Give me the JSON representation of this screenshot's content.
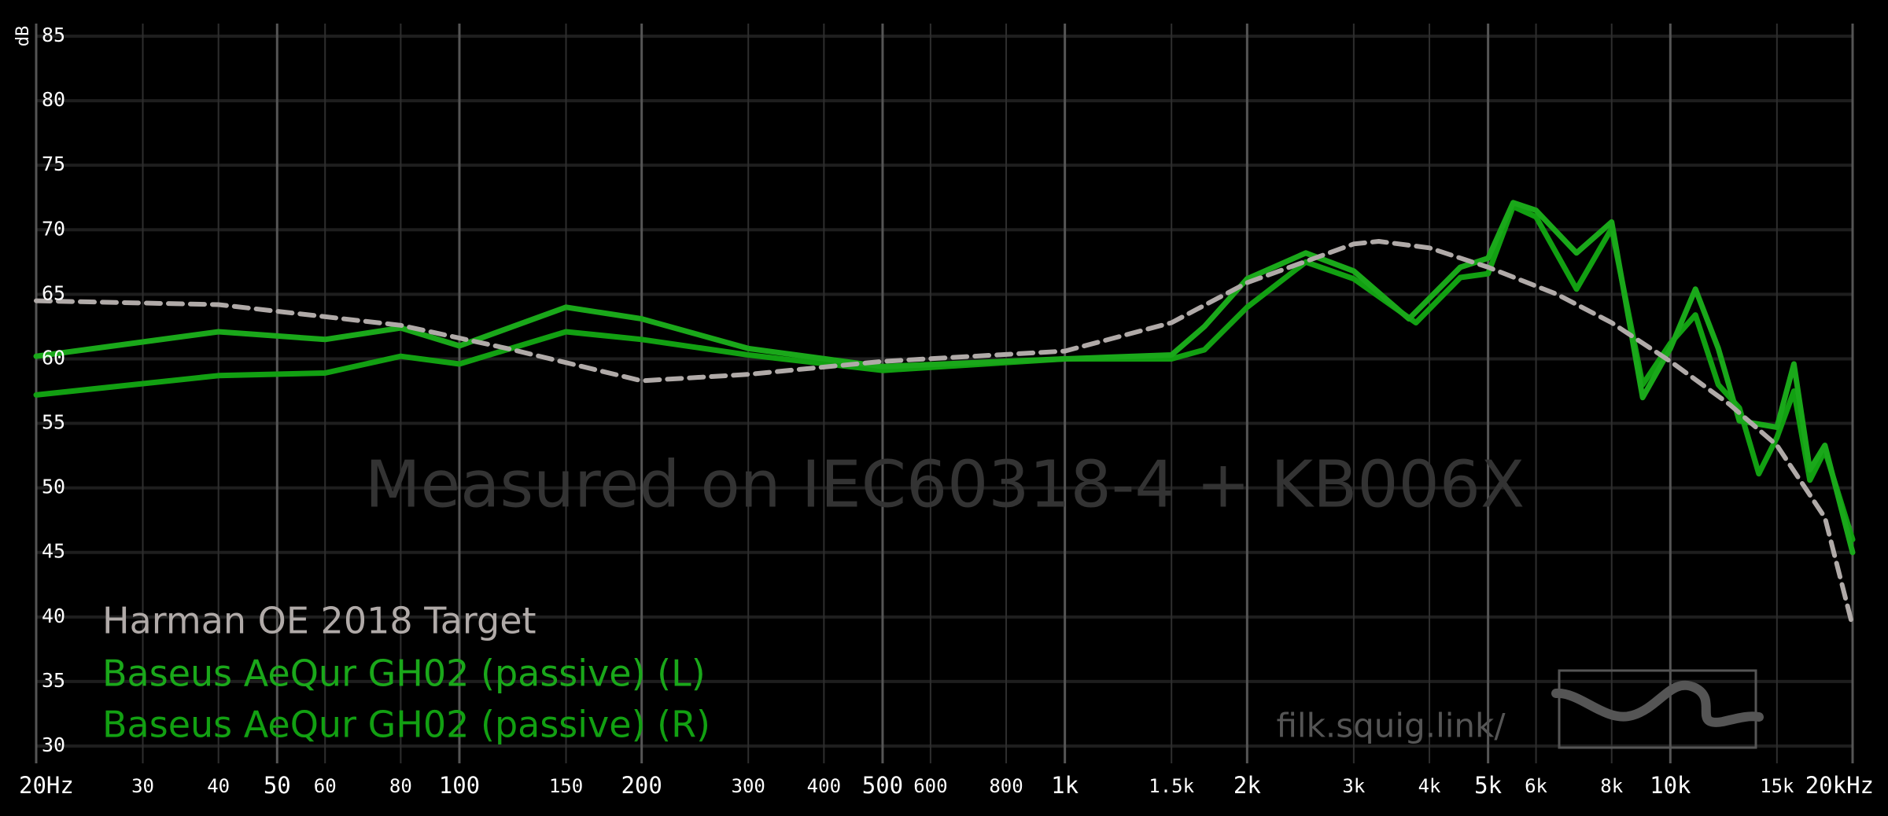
{
  "chart_data": {
    "type": "line",
    "watermark": "Measured on IEC60318-4 + KB006X",
    "site": "filk.squig.link/",
    "ylabel": "dB",
    "xscale": "log",
    "grid": true,
    "xlim": [
      20,
      20000
    ],
    "ylim": [
      30,
      85
    ],
    "yticks": [
      30,
      35,
      40,
      45,
      50,
      55,
      60,
      65,
      70,
      75,
      80,
      85
    ],
    "xticks": [
      {
        "value": 20,
        "label": "20Hz"
      },
      30,
      40,
      50,
      60,
      80,
      100,
      150,
      200,
      300,
      400,
      500,
      600,
      800,
      {
        "value": 1000,
        "label": "1k"
      },
      {
        "value": 1500,
        "label": "1.5k"
      },
      {
        "value": 2000,
        "label": "2k"
      },
      {
        "value": 3000,
        "label": "3k"
      },
      {
        "value": 4000,
        "label": "4k"
      },
      {
        "value": 5000,
        "label": "5k"
      },
      {
        "value": 6000,
        "label": "6k"
      },
      {
        "value": 8000,
        "label": "8k"
      },
      {
        "value": 10000,
        "label": "10k"
      },
      {
        "value": 15000,
        "label": "15k"
      },
      {
        "value": 20000,
        "label": "20kHz"
      }
    ],
    "series": [
      {
        "name": "Harman OE 2018 Target",
        "color": "#b0aaa8",
        "style": "dashed",
        "x": [
          20,
          40,
          80,
          120,
          200,
          300,
          500,
          1000,
          1500,
          2000,
          3000,
          3300,
          4000,
          5000,
          6500,
          8000,
          10000,
          12500,
          15000,
          18000,
          20000
        ],
        "values": [
          64.5,
          64.2,
          62.6,
          60.8,
          58.3,
          58.8,
          59.8,
          60.6,
          62.8,
          65.9,
          68.9,
          69.1,
          68.6,
          67.1,
          65.0,
          62.8,
          59.8,
          56.5,
          53.3,
          47.7,
          39.3
        ]
      },
      {
        "name": "Baseus AeQur GH02 (passive) (L)",
        "color": "#1aa81a",
        "style": "solid",
        "x": [
          20,
          40,
          60,
          80,
          100,
          150,
          200,
          300,
          500,
          1000,
          1500,
          1700,
          2000,
          2500,
          3000,
          3700,
          4500,
          5000,
          5500,
          6000,
          7000,
          8000,
          9000,
          10000,
          11000,
          12000,
          13000,
          15000,
          16000,
          17000,
          18000,
          20000
        ],
        "values": [
          60.2,
          62.1,
          61.5,
          62.4,
          61.0,
          64.0,
          63.1,
          60.8,
          59.4,
          60.0,
          60.3,
          62.5,
          66.2,
          68.2,
          66.8,
          63.1,
          67.1,
          67.8,
          72.1,
          71.5,
          68.2,
          70.6,
          57.0,
          60.8,
          65.4,
          60.8,
          55.2,
          54.7,
          59.6,
          51.4,
          53.3,
          45.0
        ]
      },
      {
        "name": "Baseus AeQur GH02 (passive) (R)",
        "color": "#12a012",
        "style": "solid",
        "x": [
          20,
          40,
          60,
          80,
          100,
          150,
          200,
          300,
          500,
          1000,
          1500,
          1700,
          2000,
          2500,
          3000,
          3800,
          4500,
          5000,
          5500,
          6000,
          7000,
          8000,
          9000,
          10000,
          11000,
          12000,
          13000,
          14000,
          15000,
          16000,
          17000,
          18000,
          20000
        ],
        "values": [
          57.2,
          58.7,
          58.9,
          60.2,
          59.6,
          62.1,
          61.5,
          60.3,
          59.1,
          60.0,
          60.0,
          60.7,
          64.0,
          67.5,
          66.2,
          62.8,
          66.3,
          66.6,
          71.8,
          71.0,
          65.4,
          70.1,
          58.0,
          61.2,
          63.4,
          58.0,
          56.2,
          51.1,
          53.9,
          57.5,
          50.6,
          52.9,
          46.0
        ]
      }
    ]
  }
}
